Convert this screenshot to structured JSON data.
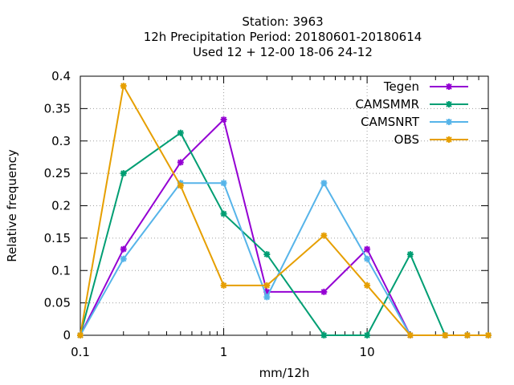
{
  "chart_data": {
    "type": "line",
    "title_lines": [
      "Station:      3963",
      "12h Precipitation  Period: 20180601-20180614",
      "Used  12 + 12-00 18-06 24-12"
    ],
    "xlabel": "mm/12h",
    "ylabel": "Relative frequency",
    "x_scale": "log",
    "xlim": [
      0.1,
      70
    ],
    "ylim": [
      0,
      0.4
    ],
    "x_ticks": [
      {
        "value": 0.1,
        "label": "0.1"
      },
      {
        "value": 1,
        "label": "1"
      },
      {
        "value": 10,
        "label": "10"
      }
    ],
    "y_ticks": [
      {
        "value": 0,
        "label": "0"
      },
      {
        "value": 0.05,
        "label": "0.05"
      },
      {
        "value": 0.1,
        "label": "0.1"
      },
      {
        "value": 0.15,
        "label": "0.15"
      },
      {
        "value": 0.2,
        "label": "0.2"
      },
      {
        "value": 0.25,
        "label": "0.25"
      },
      {
        "value": 0.3,
        "label": "0.3"
      },
      {
        "value": 0.35,
        "label": "0.35"
      },
      {
        "value": 0.4,
        "label": "0.4"
      }
    ],
    "grid": true,
    "legend_position": "top-right",
    "x": [
      0.1,
      0.2,
      0.5,
      1,
      2,
      5,
      10,
      20,
      35,
      50,
      70
    ],
    "series": [
      {
        "name": "Tegen",
        "color": "#9400d3",
        "values": [
          0,
          0.133,
          0.267,
          0.333,
          0.067,
          0.067,
          0.133,
          0,
          0,
          0,
          0
        ]
      },
      {
        "name": "CAMSMMR",
        "color": "#009e73",
        "values": [
          0,
          0.25,
          0.3125,
          0.1875,
          0.125,
          0,
          0,
          0.125,
          0,
          0,
          0
        ]
      },
      {
        "name": "CAMSNRT",
        "color": "#56b4e9",
        "values": [
          0,
          0.118,
          0.235,
          0.235,
          0.059,
          0.235,
          0.118,
          0,
          0,
          0,
          0
        ]
      },
      {
        "name": "OBS",
        "color": "#e69f00",
        "values": [
          0,
          0.385,
          0.231,
          0.077,
          0.077,
          0.154,
          0.077,
          0,
          0,
          0,
          0
        ]
      }
    ]
  }
}
